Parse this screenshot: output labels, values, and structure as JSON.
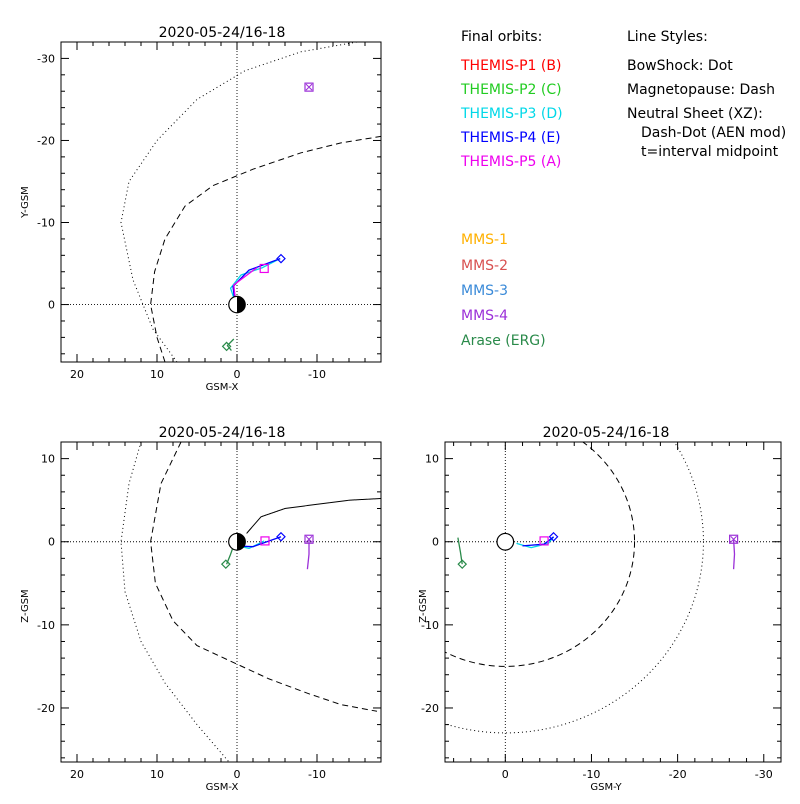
{
  "legend": {
    "final_orbits_title": "Final orbits:",
    "line_styles_title": "Line Styles:",
    "probes": [
      {
        "label": "THEMIS-P1 (B)",
        "color": "#ff0000"
      },
      {
        "label": "THEMIS-P2 (C)",
        "color": "#22cc22"
      },
      {
        "label": "THEMIS-P3 (D)",
        "color": "#00d8e8"
      },
      {
        "label": "THEMIS-P4 (E)",
        "color": "#0000ff"
      },
      {
        "label": "THEMIS-P5 (A)",
        "color": "#ee00ee"
      }
    ],
    "styles": [
      "BowShock: Dot",
      "Magnetopause: Dash",
      "Neutral Sheet (XZ):",
      "Dash-Dot (AEN mod)",
      "t=interval midpoint"
    ],
    "missions": [
      {
        "label": "MMS-1",
        "color": "#ffb000"
      },
      {
        "label": "MMS-2",
        "color": "#d85050"
      },
      {
        "label": "MMS-3",
        "color": "#3a8ad8"
      },
      {
        "label": "MMS-4",
        "color": "#9b30d8"
      },
      {
        "label": "Arase (ERG)",
        "color": "#2a8a4a"
      }
    ]
  },
  "chart_data": [
    {
      "type": "line",
      "id": "xy",
      "title": "2020-05-24/16-18",
      "xlabel": "GSM-X",
      "ylabel": "Y-GSM",
      "xlim": [
        22,
        -18
      ],
      "ylim": [
        7,
        -32
      ],
      "xticks": [
        20,
        10,
        0,
        -10
      ],
      "yticks": [
        -30,
        -20,
        -10,
        0
      ],
      "series": [
        {
          "kind": "bowshock",
          "points": [
            [
              7.5,
              7
            ],
            [
              10.5,
              3
            ],
            [
              13,
              -3
            ],
            [
              14.5,
              -10
            ],
            [
              13.5,
              -15
            ],
            [
              10,
              -20
            ],
            [
              5,
              -25
            ],
            [
              -1,
              -28.5
            ],
            [
              -8,
              -30.8
            ],
            [
              -15,
              -32
            ]
          ]
        },
        {
          "kind": "magnetopause",
          "points": [
            [
              9,
              7
            ],
            [
              10,
              4
            ],
            [
              10.8,
              0
            ],
            [
              10.3,
              -4
            ],
            [
              9,
              -8
            ],
            [
              6.5,
              -12
            ],
            [
              3,
              -14.5
            ],
            [
              -2,
              -16.5
            ],
            [
              -8,
              -18.5
            ],
            [
              -13,
              -19.7
            ],
            [
              -18,
              -20.5
            ]
          ]
        },
        {
          "kind": "orbit",
          "color": "#00d8e8",
          "points": [
            [
              0.3,
              -0.5
            ],
            [
              0.8,
              -2
            ],
            [
              -0.5,
              -3.6
            ],
            [
              -3.2,
              -4.5
            ],
            [
              -5.4,
              -5.6
            ]
          ]
        },
        {
          "kind": "orbit",
          "color": "#0000ff",
          "points": [
            [
              0.3,
              -0.6
            ],
            [
              0.5,
              -2.2
            ],
            [
              -1.5,
              -4.2
            ],
            [
              -5.4,
              -5.6
            ]
          ]
        },
        {
          "kind": "orbit",
          "color": "#ee00ee",
          "points": [
            [
              0.2,
              -0.6
            ],
            [
              0.4,
              -2.4
            ],
            [
              -2.5,
              -4.5
            ]
          ]
        },
        {
          "kind": "orbit",
          "color": "#2a8a4a",
          "points": [
            [
              0.4,
              4.2
            ],
            [
              1.2,
              5
            ],
            [
              0.7,
              5.6
            ]
          ]
        }
      ],
      "markers": [
        {
          "shape": "square",
          "color": "#ee00ee",
          "point": [
            -3.4,
            -4.4
          ]
        },
        {
          "shape": "diamond",
          "color": "#0000ff",
          "point": [
            -5.5,
            -5.6
          ]
        },
        {
          "shape": "square",
          "color": "#9b30d8",
          "point": [
            -9,
            -26.5
          ]
        },
        {
          "shape": "cross",
          "color": "#9b30d8",
          "point": [
            -9,
            -26.5
          ]
        },
        {
          "shape": "diamond",
          "color": "#2a8a4a",
          "point": [
            1.3,
            5.1
          ]
        }
      ],
      "earth": {
        "point": [
          0,
          0
        ],
        "radius": 1,
        "day_side": "right"
      }
    },
    {
      "type": "line",
      "id": "xz",
      "title": "2020-05-24/16-18",
      "xlabel": "GSM-X",
      "ylabel": "Z-GSM",
      "xlim": [
        22,
        -18
      ],
      "ylim": [
        -26.5,
        12
      ],
      "xticks": [
        20,
        10,
        0,
        -10
      ],
      "yticks": [
        10,
        0,
        -10,
        -20
      ],
      "series": [
        {
          "kind": "bowshock",
          "points": [
            [
              12,
              12
            ],
            [
              13.5,
              7
            ],
            [
              14.5,
              0
            ],
            [
              14,
              -6
            ],
            [
              12,
              -12
            ],
            [
              9,
              -17
            ],
            [
              5,
              -22
            ],
            [
              1,
              -26.5
            ]
          ]
        },
        {
          "kind": "magnetopause",
          "points": [
            [
              7,
              12
            ],
            [
              9.5,
              7
            ],
            [
              10.8,
              0
            ],
            [
              10.2,
              -5
            ],
            [
              8,
              -9.5
            ],
            [
              5,
              -12.5
            ],
            [
              0.5,
              -14.5
            ],
            [
              -4,
              -16.5
            ],
            [
              -9,
              -18.3
            ],
            [
              -13,
              -19.6
            ],
            [
              -17.5,
              -20.4
            ]
          ]
        },
        {
          "kind": "neutral_sheet",
          "points": [
            [
              -1.2,
              1
            ],
            [
              -3,
              3
            ],
            [
              -6,
              4
            ],
            [
              -10,
              4.5
            ],
            [
              -14,
              5
            ],
            [
              -18,
              5.2
            ]
          ]
        },
        {
          "kind": "orbit",
          "color": "#00d8e8",
          "points": [
            [
              0.3,
              -0.4
            ],
            [
              -1.5,
              -0.8
            ],
            [
              -3.4,
              0.1
            ]
          ]
        },
        {
          "kind": "orbit",
          "color": "#0000ff",
          "points": [
            [
              0.3,
              -0.5
            ],
            [
              -2,
              -0.6
            ],
            [
              -5.5,
              0.6
            ]
          ]
        },
        {
          "kind": "orbit",
          "color": "#2a8a4a",
          "points": [
            [
              0.4,
              -0.4
            ],
            [
              0.8,
              -1.5
            ],
            [
              1.3,
              -2.7
            ]
          ]
        },
        {
          "kind": "orbit",
          "color": "#9b30d8",
          "points": [
            [
              -9,
              0.3
            ],
            [
              -9,
              -1.5
            ],
            [
              -8.8,
              -3.3
            ]
          ]
        }
      ],
      "markers": [
        {
          "shape": "square",
          "color": "#ee00ee",
          "point": [
            -3.5,
            0.1
          ]
        },
        {
          "shape": "diamond",
          "color": "#0000ff",
          "point": [
            -5.5,
            0.6
          ]
        },
        {
          "shape": "square",
          "color": "#9b30d8",
          "point": [
            -9,
            0.3
          ]
        },
        {
          "shape": "cross",
          "color": "#9b30d8",
          "point": [
            -9,
            0.3
          ]
        },
        {
          "shape": "diamond",
          "color": "#2a8a4a",
          "point": [
            1.4,
            -2.7
          ]
        }
      ],
      "earth": {
        "point": [
          0,
          0
        ],
        "radius": 1,
        "day_side": "right"
      }
    },
    {
      "type": "line",
      "id": "yz",
      "title": "2020-05-24/16-18",
      "xlabel": "GSM-Y",
      "ylabel": "Z-GSM",
      "xlim": [
        7,
        -32
      ],
      "ylim": [
        -26.5,
        12
      ],
      "xticks": [
        0,
        -10,
        -20,
        -30
      ],
      "yticks": [
        10,
        0,
        -10,
        -20
      ],
      "series": [
        {
          "kind": "bowshock_circle",
          "center": [
            0,
            0
          ],
          "radius": 23
        },
        {
          "kind": "magnetopause_circle",
          "center": [
            0,
            0
          ],
          "radius": 15
        },
        {
          "kind": "orbit",
          "color": "#00d8e8",
          "points": [
            [
              -1.3,
              -0.2
            ],
            [
              -3,
              -0.7
            ],
            [
              -5,
              -0.2
            ],
            [
              -5.6,
              0.6
            ]
          ]
        },
        {
          "kind": "orbit",
          "color": "#0000ff",
          "points": [
            [
              -2,
              -0.5
            ],
            [
              -4.5,
              -0.3
            ],
            [
              -5.6,
              0.6
            ]
          ]
        },
        {
          "kind": "orbit",
          "color": "#2a8a4a",
          "points": [
            [
              5.5,
              0.5
            ],
            [
              5.2,
              -1.3
            ],
            [
              5,
              -2.7
            ]
          ]
        },
        {
          "kind": "orbit",
          "color": "#9b30d8",
          "points": [
            [
              -26.5,
              0.3
            ],
            [
              -26.6,
              -1.5
            ],
            [
              -26.5,
              -3.3
            ]
          ]
        }
      ],
      "markers": [
        {
          "shape": "square",
          "color": "#ee00ee",
          "point": [
            -4.5,
            0.1
          ]
        },
        {
          "shape": "diamond",
          "color": "#0000ff",
          "point": [
            -5.6,
            0.6
          ]
        },
        {
          "shape": "square",
          "color": "#9b30d8",
          "point": [
            -26.5,
            0.3
          ]
        },
        {
          "shape": "cross",
          "color": "#9b30d8",
          "point": [
            -26.5,
            0.3
          ]
        },
        {
          "shape": "diamond",
          "color": "#2a8a4a",
          "point": [
            5,
            -2.7
          ]
        }
      ],
      "earth": {
        "point": [
          0,
          0
        ],
        "radius": 1,
        "day_side": "none"
      }
    }
  ]
}
